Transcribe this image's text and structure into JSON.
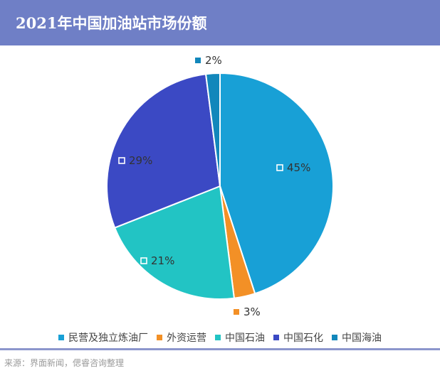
{
  "title": "2021年中国加油站市场份额",
  "source": "来源：界面新闻，偲睿咨询整理",
  "chart_data": {
    "type": "pie",
    "slices": [
      {
        "label": "民营及独立炼油厂",
        "value": 45,
        "display": "45%",
        "color": "#18a0d6"
      },
      {
        "label": "外资运营",
        "value": 3,
        "display": "3%",
        "color": "#f39026"
      },
      {
        "label": "中国石油",
        "value": 21,
        "display": "21%",
        "color": "#22c4c4"
      },
      {
        "label": "中国石化",
        "value": 29,
        "display": "29%",
        "color": "#3b49c4"
      },
      {
        "label": "中国海油",
        "value": 2,
        "display": "2%",
        "color": "#1287bb"
      }
    ],
    "legend_position": "bottom"
  }
}
